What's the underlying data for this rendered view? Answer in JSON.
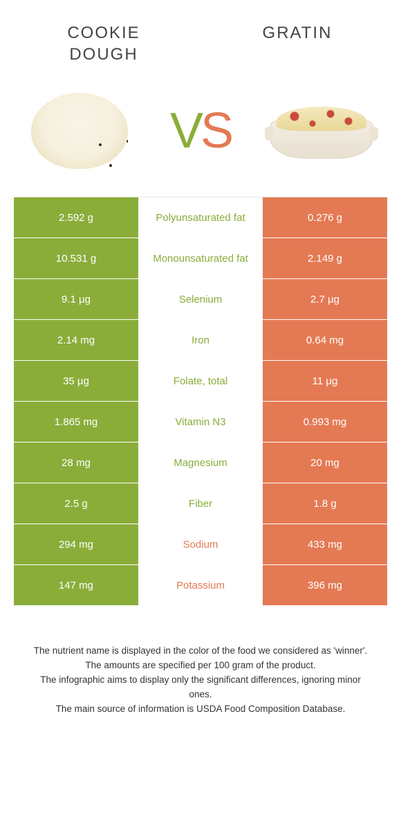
{
  "colors": {
    "left": "#8aad3a",
    "right": "#e47a54",
    "text": "#333333",
    "white": "#ffffff"
  },
  "foods": {
    "left": {
      "title": "COOKIE DOUGH"
    },
    "right": {
      "title": "GRATIN"
    }
  },
  "vs": {
    "v": "V",
    "s": "S"
  },
  "rows": [
    {
      "left": "2.592 g",
      "label": "Polyunsaturated fat",
      "right": "0.276 g",
      "winner": "left"
    },
    {
      "left": "10.531 g",
      "label": "Monounsaturated fat",
      "right": "2.149 g",
      "winner": "left"
    },
    {
      "left": "9.1 µg",
      "label": "Selenium",
      "right": "2.7 µg",
      "winner": "left"
    },
    {
      "left": "2.14 mg",
      "label": "Iron",
      "right": "0.64 mg",
      "winner": "left"
    },
    {
      "left": "35 µg",
      "label": "Folate, total",
      "right": "11 µg",
      "winner": "left"
    },
    {
      "left": "1.865 mg",
      "label": "Vitamin N3",
      "right": "0.993 mg",
      "winner": "left"
    },
    {
      "left": "28 mg",
      "label": "Magnesium",
      "right": "20 mg",
      "winner": "left"
    },
    {
      "left": "2.5 g",
      "label": "Fiber",
      "right": "1.8 g",
      "winner": "left"
    },
    {
      "left": "294 mg",
      "label": "Sodium",
      "right": "433 mg",
      "winner": "right"
    },
    {
      "left": "147 mg",
      "label": "Potassium",
      "right": "396 mg",
      "winner": "right"
    }
  ],
  "footer": {
    "line1": "The nutrient name is displayed in the color of the food we considered as 'winner'.",
    "line2": "The amounts are specified per 100 gram of the product.",
    "line3": "The infographic aims to display only the significant differences, ignoring minor ones.",
    "line4": "The main source of information is USDA Food Composition Database."
  }
}
